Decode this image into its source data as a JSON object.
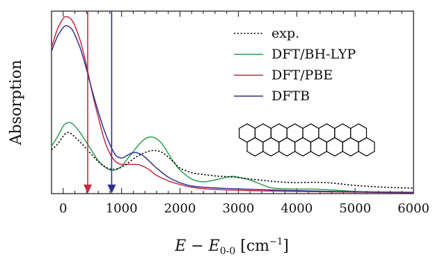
{
  "chart_data": {
    "type": "line",
    "xlabel": {
      "prefix": "E − E",
      "subscript": "0-0",
      "unit_open": " [cm",
      "unit_power": "−1",
      "unit_close": "]"
    },
    "ylabel": "Absorption",
    "xlim": [
      -200,
      6000
    ],
    "ylim": [
      0,
      1
    ],
    "x_ticks": [
      0,
      1000,
      2000,
      3000,
      4000,
      5000,
      6000
    ],
    "x_tick_labels": [
      "0",
      "1000",
      "2000",
      "3000",
      "4000",
      "5000",
      "6000"
    ],
    "grid": false,
    "legend_position": "top-right",
    "series": [
      {
        "name": "exp.",
        "color": "#000000",
        "dash": "dotted",
        "points": [
          [
            -200,
            0.24
          ],
          [
            -100,
            0.27
          ],
          [
            0,
            0.315
          ],
          [
            50,
            0.33
          ],
          [
            100,
            0.335
          ],
          [
            150,
            0.325
          ],
          [
            200,
            0.31
          ],
          [
            300,
            0.28
          ],
          [
            400,
            0.245
          ],
          [
            500,
            0.21
          ],
          [
            600,
            0.175
          ],
          [
            700,
            0.15
          ],
          [
            800,
            0.135
          ],
          [
            900,
            0.135
          ],
          [
            1000,
            0.145
          ],
          [
            1100,
            0.165
          ],
          [
            1200,
            0.19
          ],
          [
            1300,
            0.21
          ],
          [
            1400,
            0.225
          ],
          [
            1500,
            0.235
          ],
          [
            1600,
            0.235
          ],
          [
            1700,
            0.225
          ],
          [
            1800,
            0.2
          ],
          [
            1900,
            0.17
          ],
          [
            2000,
            0.14
          ],
          [
            2200,
            0.115
          ],
          [
            2400,
            0.105
          ],
          [
            2600,
            0.097
          ],
          [
            2800,
            0.093
          ],
          [
            3000,
            0.088
          ],
          [
            3200,
            0.08
          ],
          [
            3500,
            0.07
          ],
          [
            3800,
            0.062
          ],
          [
            4000,
            0.06
          ],
          [
            4300,
            0.062
          ],
          [
            4600,
            0.058
          ],
          [
            5000,
            0.045
          ],
          [
            5500,
            0.035
          ],
          [
            6000,
            0.03
          ]
        ]
      },
      {
        "name": "DFT/BH-LYP",
        "color": "#2e9e4f",
        "dash": "solid",
        "points": [
          [
            -200,
            0.26
          ],
          [
            -100,
            0.31
          ],
          [
            0,
            0.37
          ],
          [
            50,
            0.385
          ],
          [
            100,
            0.39
          ],
          [
            150,
            0.385
          ],
          [
            200,
            0.37
          ],
          [
            300,
            0.33
          ],
          [
            400,
            0.28
          ],
          [
            500,
            0.23
          ],
          [
            600,
            0.18
          ],
          [
            700,
            0.15
          ],
          [
            800,
            0.13
          ],
          [
            900,
            0.13
          ],
          [
            1000,
            0.15
          ],
          [
            1100,
            0.19
          ],
          [
            1200,
            0.23
          ],
          [
            1300,
            0.27
          ],
          [
            1400,
            0.3
          ],
          [
            1500,
            0.31
          ],
          [
            1600,
            0.3
          ],
          [
            1700,
            0.27
          ],
          [
            1800,
            0.22
          ],
          [
            1900,
            0.17
          ],
          [
            2000,
            0.13
          ],
          [
            2200,
            0.08
          ],
          [
            2400,
            0.065
          ],
          [
            2600,
            0.075
          ],
          [
            2800,
            0.09
          ],
          [
            2900,
            0.095
          ],
          [
            3000,
            0.09
          ],
          [
            3200,
            0.075
          ],
          [
            3400,
            0.05
          ],
          [
            3600,
            0.03
          ],
          [
            4000,
            0.025
          ],
          [
            4300,
            0.025
          ],
          [
            4600,
            0.02
          ],
          [
            5000,
            0.012
          ],
          [
            5500,
            0.008
          ],
          [
            6000,
            0.006
          ]
        ]
      },
      {
        "name": "DFT/PBE",
        "color": "#c8283c",
        "dash": "solid",
        "points": [
          [
            -200,
            0.8
          ],
          [
            -100,
            0.9
          ],
          [
            0,
            0.96
          ],
          [
            50,
            0.97
          ],
          [
            100,
            0.965
          ],
          [
            150,
            0.95
          ],
          [
            200,
            0.92
          ],
          [
            300,
            0.83
          ],
          [
            400,
            0.7
          ],
          [
            500,
            0.55
          ],
          [
            600,
            0.42
          ],
          [
            700,
            0.3
          ],
          [
            800,
            0.22
          ],
          [
            900,
            0.175
          ],
          [
            1000,
            0.16
          ],
          [
            1100,
            0.16
          ],
          [
            1200,
            0.16
          ],
          [
            1300,
            0.158
          ],
          [
            1400,
            0.145
          ],
          [
            1500,
            0.125
          ],
          [
            1600,
            0.1
          ],
          [
            1800,
            0.07
          ],
          [
            2000,
            0.05
          ],
          [
            2200,
            0.035
          ],
          [
            2500,
            0.025
          ],
          [
            3000,
            0.018
          ],
          [
            4000,
            0.012
          ],
          [
            5000,
            0.008
          ],
          [
            6000,
            0.005
          ]
        ]
      },
      {
        "name": "DFTB",
        "color": "#2e3192",
        "dash": "solid",
        "points": [
          [
            -200,
            0.78
          ],
          [
            -100,
            0.86
          ],
          [
            0,
            0.91
          ],
          [
            50,
            0.92
          ],
          [
            100,
            0.915
          ],
          [
            150,
            0.9
          ],
          [
            200,
            0.87
          ],
          [
            300,
            0.79
          ],
          [
            400,
            0.68
          ],
          [
            500,
            0.56
          ],
          [
            600,
            0.45
          ],
          [
            700,
            0.35
          ],
          [
            800,
            0.27
          ],
          [
            900,
            0.21
          ],
          [
            1000,
            0.195
          ],
          [
            1100,
            0.21
          ],
          [
            1200,
            0.225
          ],
          [
            1300,
            0.22
          ],
          [
            1400,
            0.2
          ],
          [
            1500,
            0.17
          ],
          [
            1600,
            0.14
          ],
          [
            1800,
            0.09
          ],
          [
            2000,
            0.06
          ],
          [
            2200,
            0.042
          ],
          [
            2500,
            0.033
          ],
          [
            3000,
            0.026
          ],
          [
            4000,
            0.016
          ],
          [
            5000,
            0.01
          ],
          [
            6000,
            0.007
          ]
        ]
      }
    ],
    "markers": [
      {
        "x": 420,
        "color": "#c8283c"
      },
      {
        "x": 830,
        "color": "#2e3192"
      }
    ],
    "inset": {
      "shape": "hexagon-ribbon",
      "columns": 8,
      "rows": 2,
      "stroke": "#000000"
    }
  }
}
